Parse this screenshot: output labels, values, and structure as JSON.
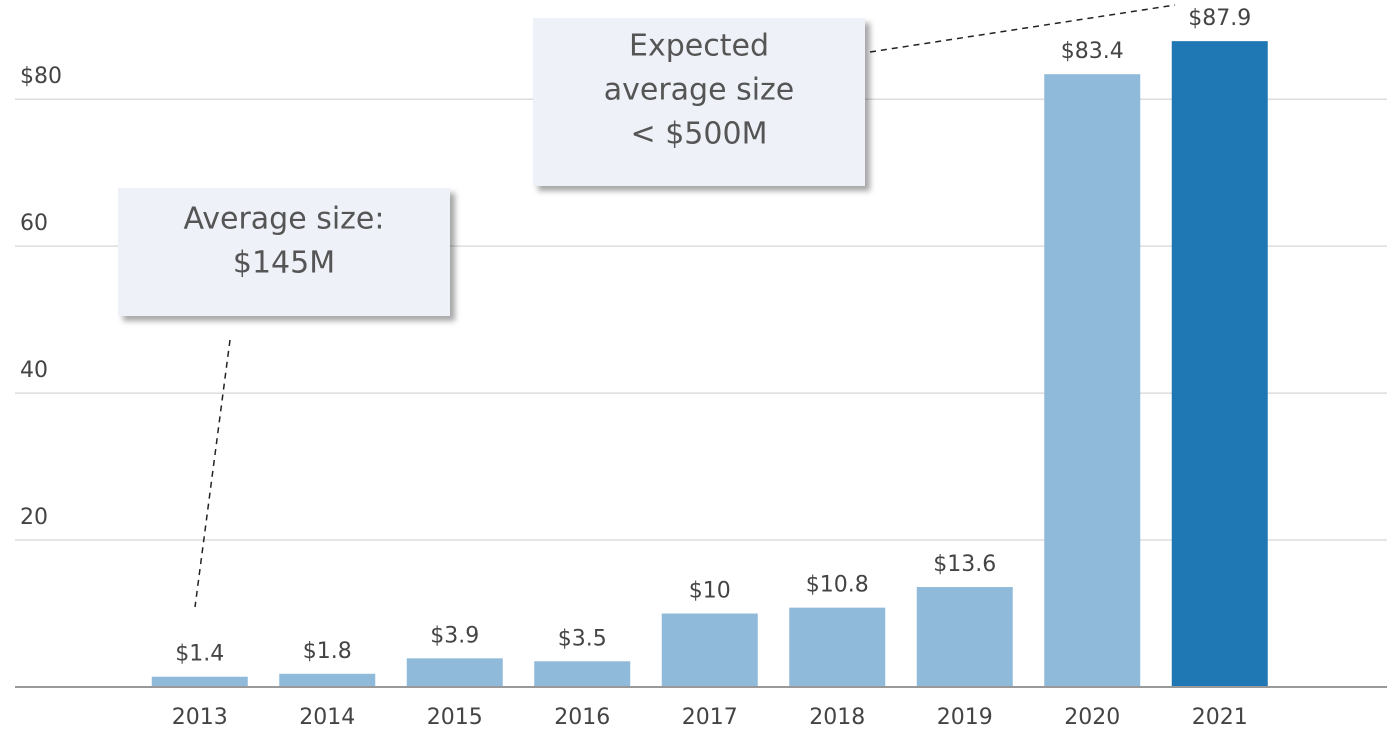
{
  "chart_data": {
    "type": "bar",
    "categories": [
      "2013",
      "2014",
      "2015",
      "2016",
      "2017",
      "2018",
      "2019",
      "2020",
      "2021"
    ],
    "values": [
      1.4,
      1.8,
      3.9,
      3.5,
      10,
      10.8,
      13.6,
      83.4,
      87.9
    ],
    "value_labels": [
      "$1.4",
      "$1.8",
      "$3.9",
      "$3.5",
      "$10",
      "$10.8",
      "$13.6",
      "$83.4",
      "$87.9"
    ],
    "colors": [
      "#8fbad9",
      "#8fbad9",
      "#8fbad9",
      "#8fbad9",
      "#8fbad9",
      "#8fbad9",
      "#8fbad9",
      "#8fbad9",
      "#1f77b4"
    ],
    "ylim": [
      0,
      93.5
    ],
    "yticks": [
      20,
      40,
      60,
      {
        "value": 80,
        "label": "$80"
      }
    ],
    "grid": true,
    "annotations": [
      {
        "lines": [
          "Average size:",
          "$145M"
        ]
      },
      {
        "lines": [
          "Expected",
          "average size",
          "< $500M"
        ]
      }
    ]
  }
}
